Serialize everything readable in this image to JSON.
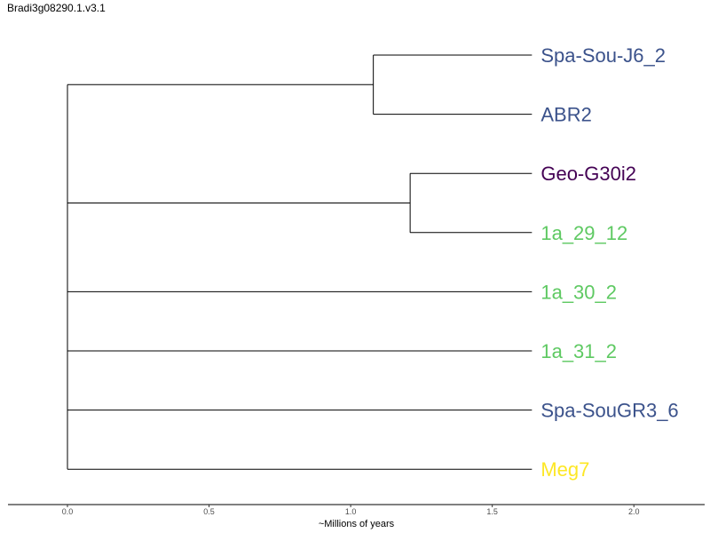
{
  "title": "Bradi3g08290.1.v3.1",
  "chart_data": {
    "type": "dendrogram",
    "xlabel": "~Millions of years",
    "xlim": [
      -0.21,
      2.25
    ],
    "x_ticks": [
      {
        "value": 0.0,
        "label": "0.0"
      },
      {
        "value": 0.5,
        "label": "0.5"
      },
      {
        "value": 1.0,
        "label": "1.0"
      },
      {
        "value": 1.5,
        "label": "1.5"
      },
      {
        "value": 2.0,
        "label": "2.0"
      }
    ],
    "tips": [
      {
        "name": "Spa-Sou-J6_2",
        "color": "#3b528b"
      },
      {
        "name": "ABR2",
        "color": "#3b528b"
      },
      {
        "name": "Geo-G30i2",
        "color": "#440154"
      },
      {
        "name": "1a_29_12",
        "color": "#5ec962"
      },
      {
        "name": "1a_30_2",
        "color": "#5ec962"
      },
      {
        "name": "1a_31_2",
        "color": "#5ec962"
      },
      {
        "name": "Spa-SouGR3_6",
        "color": "#3b528b"
      },
      {
        "name": "Meg7",
        "color": "#fde725"
      }
    ],
    "tip_x": 1.64,
    "root_x": 0.0,
    "clades": [
      {
        "tips": [
          0,
          1
        ],
        "node_x": 1.08
      },
      {
        "tips": [
          2,
          3
        ],
        "node_x": 1.21
      }
    ]
  }
}
